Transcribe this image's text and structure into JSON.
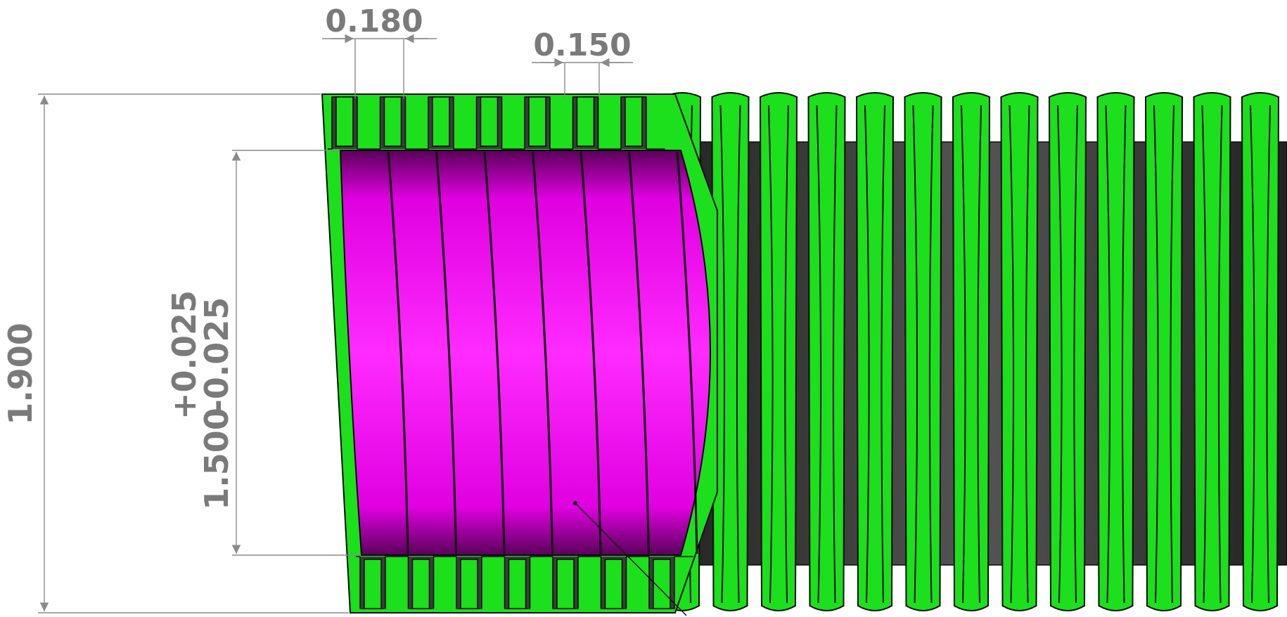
{
  "drawing": {
    "title": "",
    "dimensions": {
      "pitch": "0.180",
      "rib_width": "0.150",
      "outer_diameter": "1.900",
      "inner_diameter": "1.500",
      "tol_plus": "+0.025",
      "tol_minus": "-0.025"
    },
    "colors": {
      "corrugation": "#1be01b",
      "inner_liner": "#e000e0",
      "core": "#3c3c3c",
      "dimension": "#7a7a7a"
    },
    "part": "corrugated-pipe-cutaway"
  }
}
